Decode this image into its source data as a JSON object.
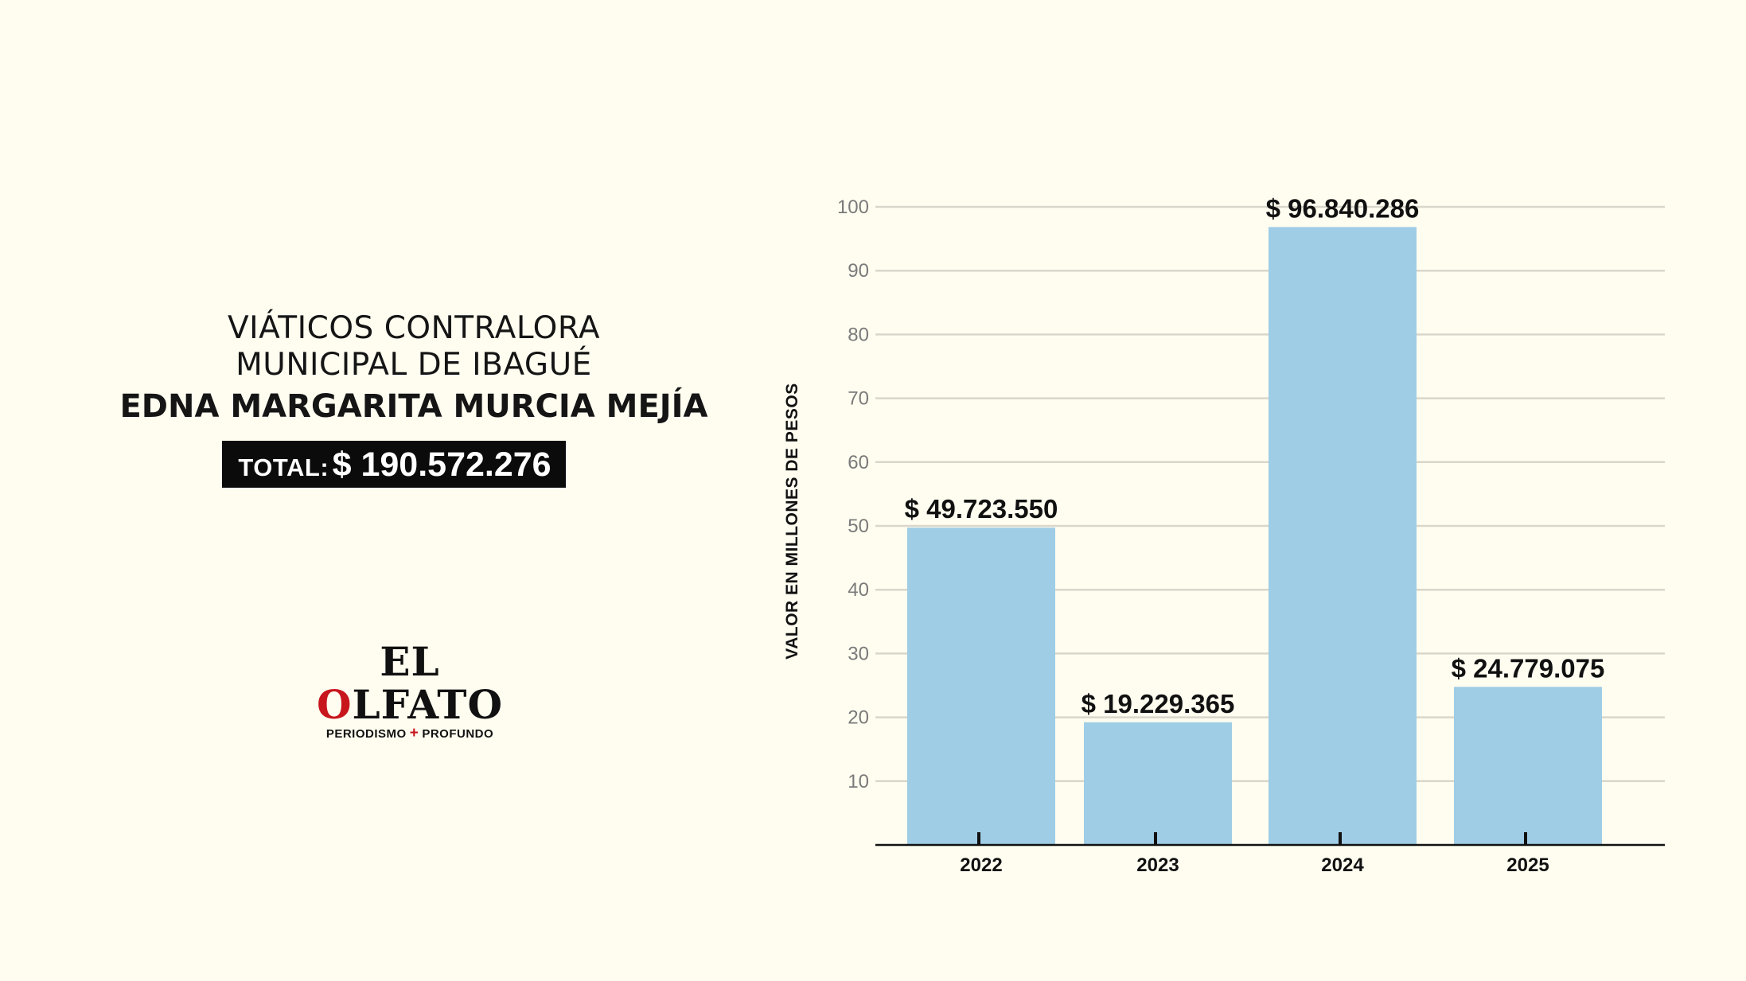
{
  "header": {
    "title_line1": "VIÁTICOS CONTRALORA",
    "title_line2": "MUNICIPAL DE IBAGUÉ",
    "name": "EDNA MARGARITA MURCIA MEJÍA",
    "total_label": "TOTAL:",
    "total_value": "$ 190.572.276"
  },
  "logo": {
    "word1": "EL",
    "word2_first": "O",
    "word2_rest": "LFATO",
    "tagline_left": "PERIODISMO",
    "tagline_plus": "+",
    "tagline_right": "PROFUNDO"
  },
  "colors": {
    "background": "#fffdf0",
    "bar": "#9fcde6",
    "grid": "#d9d6cc",
    "brand_red": "#c8161d"
  },
  "chart_data": {
    "type": "bar",
    "categories": [
      "2022",
      "2023",
      "2024",
      "2025"
    ],
    "values": [
      49.72355,
      19.229365,
      96.840286,
      24.779075
    ],
    "data_labels": [
      "$ 49.723.550",
      "$ 19.229.365",
      "$ 96.840.286",
      "$ 24.779.075"
    ],
    "title": "",
    "xlabel": "",
    "ylabel": "VALOR EN MILLONES DE PESOS",
    "ylim": [
      0,
      100
    ],
    "yticks": [
      10,
      20,
      30,
      40,
      50,
      60,
      70,
      80,
      90,
      100
    ],
    "grid": true
  }
}
